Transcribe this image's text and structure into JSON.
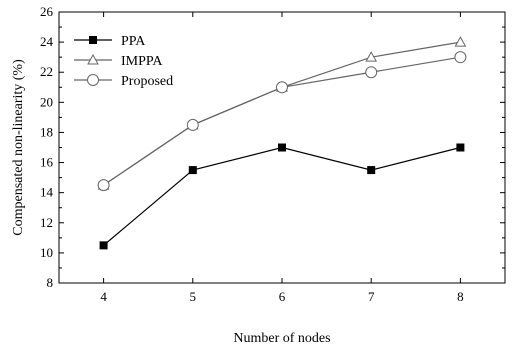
{
  "chart_data": {
    "type": "line",
    "title": "",
    "xlabel": "Number of nodes",
    "ylabel": "Compensated non-linearity (%)",
    "x": [
      4,
      5,
      6,
      7,
      8
    ],
    "xlim": [
      3.5,
      8.5
    ],
    "ylim": [
      8,
      26
    ],
    "x_ticks": [
      "4",
      "5",
      "6",
      "7",
      "8"
    ],
    "y_ticks": [
      "8",
      "10",
      "12",
      "14",
      "16",
      "18",
      "20",
      "22",
      "24",
      "26"
    ],
    "grid": false,
    "legend_position": "top-left",
    "series": [
      {
        "name": "PPA",
        "marker": "filled-square",
        "color": "#000000",
        "values": [
          10.5,
          15.5,
          17.0,
          15.5,
          17.0
        ]
      },
      {
        "name": "IMPPA",
        "marker": "open-triangle",
        "color": "#666666",
        "values": [
          14.5,
          18.5,
          21.0,
          23.0,
          24.0
        ]
      },
      {
        "name": "Proposed",
        "marker": "open-circle",
        "color": "#666666",
        "values": [
          14.5,
          18.5,
          21.0,
          22.0,
          23.0
        ]
      }
    ]
  }
}
